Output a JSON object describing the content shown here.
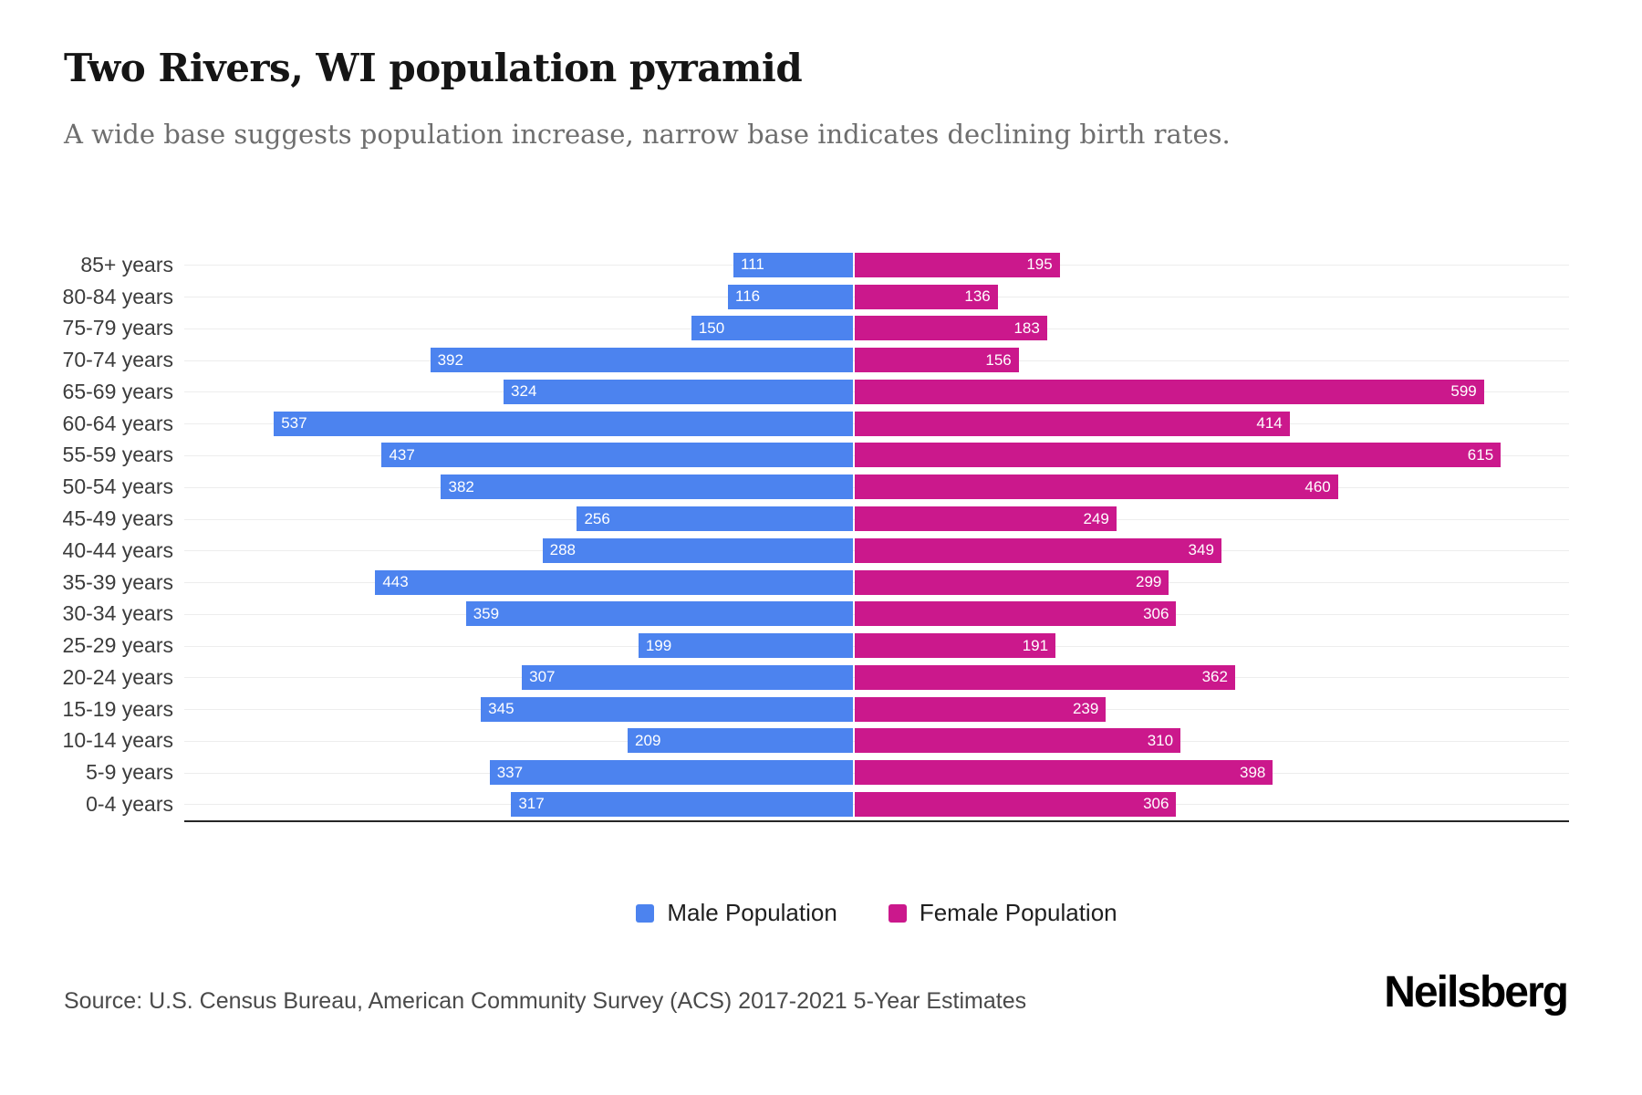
{
  "chart_data": {
    "type": "bar",
    "variant": "population-pyramid",
    "title": "Two Rivers, WI population pyramid",
    "subtitle": "A wide base suggests population increase, narrow base indicates declining birth rates.",
    "categories": [
      "85+ years",
      "80-84 years",
      "75-79 years",
      "70-74 years",
      "65-69 years",
      "60-64 years",
      "55-59 years",
      "50-54 years",
      "45-49 years",
      "40-44 years",
      "35-39 years",
      "30-34 years",
      "25-29 years",
      "20-24 years",
      "15-19 years",
      "10-14 years",
      "5-9 years",
      "0-4 years"
    ],
    "series": [
      {
        "name": "Male Population",
        "side": "left",
        "color": "#4C83EF",
        "values": [
          111,
          116,
          150,
          392,
          324,
          537,
          437,
          382,
          256,
          288,
          443,
          359,
          199,
          307,
          345,
          209,
          337,
          317
        ]
      },
      {
        "name": "Female Population",
        "side": "right",
        "color": "#CB188C",
        "values": [
          195,
          136,
          183,
          156,
          599,
          414,
          615,
          460,
          249,
          349,
          299,
          306,
          191,
          362,
          239,
          310,
          398,
          306
        ]
      }
    ],
    "xlim_male": [
      0,
      620
    ],
    "xlim_female": [
      0,
      680
    ],
    "grid": true,
    "gridline_color": "#ededed",
    "value_labels": "inside-outer-end",
    "value_label_color": "#ffffff",
    "legend_position": "bottom-center"
  },
  "footer": {
    "source": "Source: U.S. Census Bureau, American Community Survey (ACS) 2017-2021 5-Year Estimates",
    "brand": "Neilsberg"
  }
}
